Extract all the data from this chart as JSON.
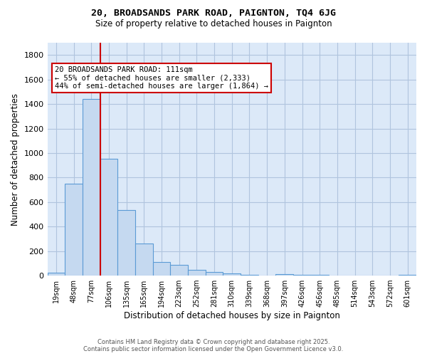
{
  "title1": "20, BROADSANDS PARK ROAD, PAIGNTON, TQ4 6JG",
  "title2": "Size of property relative to detached houses in Paignton",
  "xlabel": "Distribution of detached houses by size in Paignton",
  "ylabel": "Number of detached properties",
  "categories": [
    "19sqm",
    "48sqm",
    "77sqm",
    "106sqm",
    "135sqm",
    "165sqm",
    "194sqm",
    "223sqm",
    "252sqm",
    "281sqm",
    "310sqm",
    "339sqm",
    "368sqm",
    "397sqm",
    "426sqm",
    "456sqm",
    "485sqm",
    "514sqm",
    "543sqm",
    "572sqm",
    "601sqm"
  ],
  "values": [
    22,
    747,
    1443,
    951,
    537,
    263,
    109,
    88,
    48,
    28,
    17,
    8,
    3,
    13,
    8,
    8,
    3,
    3,
    2,
    1,
    5
  ],
  "bar_color": "#c5d9f0",
  "bar_edge_color": "#5b9bd5",
  "property_line_index": 3,
  "property_line_color": "#cc0000",
  "annotation_text": "20 BROADSANDS PARK ROAD: 111sqm\n← 55% of detached houses are smaller (2,333)\n44% of semi-detached houses are larger (1,864) →",
  "annotation_box_color": "white",
  "annotation_box_edge": "#cc0000",
  "ylim": [
    0,
    1900
  ],
  "yticks": [
    0,
    200,
    400,
    600,
    800,
    1000,
    1200,
    1400,
    1600,
    1800
  ],
  "background_color": "#dce9f8",
  "grid_color": "#b0c4de",
  "footer1": "Contains HM Land Registry data © Crown copyright and database right 2025.",
  "footer2": "Contains public sector information licensed under the Open Government Licence v3.0."
}
